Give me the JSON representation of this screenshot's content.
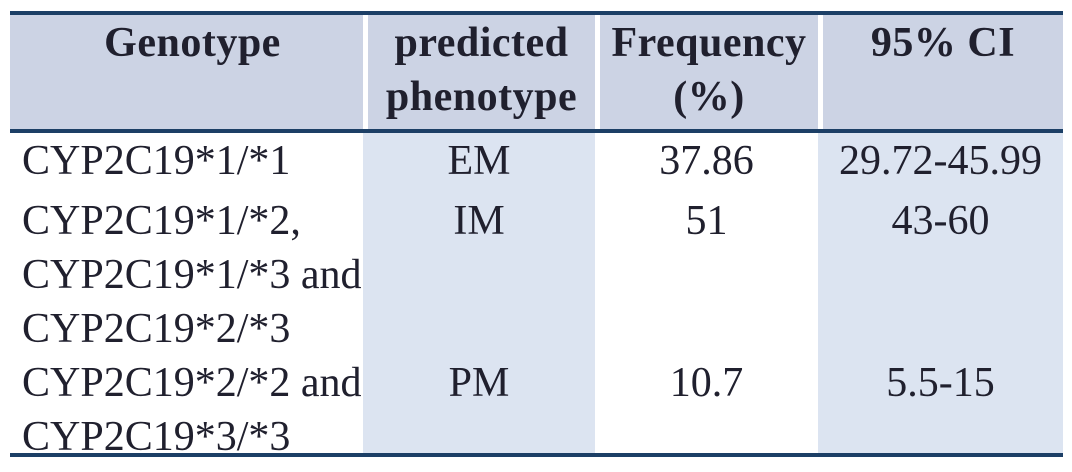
{
  "table": {
    "columns": [
      "Genotype",
      "predicted phenotype",
      "Frequency (%)",
      "95% CI"
    ],
    "rows": [
      {
        "genotype_lines": [
          "CYP2C19*1/*1"
        ],
        "phenotype": "EM",
        "frequency": "37.86",
        "ci": "29.72-45.99"
      },
      {
        "genotype_lines": [
          "CYP2C19*1/*2,",
          "CYP2C19*1/*3 and",
          "CYP2C19*2/*3"
        ],
        "phenotype": "IM",
        "frequency": "51",
        "ci": "43-60"
      },
      {
        "genotype_lines": [
          "CYP2C19*2/*2 and",
          "CYP2C19*3/*3"
        ],
        "phenotype": "PM",
        "frequency": "10.7",
        "ci": "5.5-15"
      }
    ]
  },
  "colors": {
    "header_bg": "#ccd3e4",
    "stripe_bg": "#dce4f1",
    "rule": "#1c3f66",
    "text": "#20202e"
  }
}
